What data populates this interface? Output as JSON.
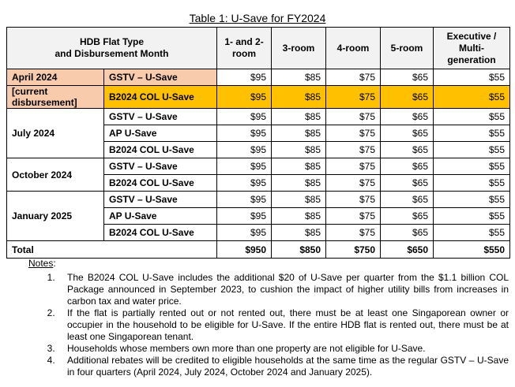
{
  "caption": "Table 1: U-Save for FY2024",
  "header": {
    "type_col_line1": "HDB Flat Type",
    "type_col_line2": "and Disbursement Month",
    "cols": [
      "1- and 2-room",
      "3-room",
      "4-room",
      "5-room",
      "Executive / Multi-generation"
    ]
  },
  "groups": [
    {
      "month_line1": "April 2024",
      "month_line2": "[current disbursement]",
      "rows": [
        {
          "type": "GSTV – U-Save",
          "values": [
            "$95",
            "$85",
            "$75",
            "$65",
            "$55"
          ]
        },
        {
          "type": "B2024 COL U-Save",
          "values": [
            "$95",
            "$85",
            "$75",
            "$65",
            "$55"
          ]
        }
      ]
    },
    {
      "month_line1": "July 2024",
      "rows": [
        {
          "type": "GSTV – U-Save",
          "values": [
            "$95",
            "$85",
            "$75",
            "$65",
            "$55"
          ]
        },
        {
          "type": "AP U-Save",
          "values": [
            "$95",
            "$85",
            "$75",
            "$65",
            "$55"
          ]
        },
        {
          "type": "B2024 COL U-Save",
          "values": [
            "$95",
            "$85",
            "$75",
            "$65",
            "$55"
          ]
        }
      ]
    },
    {
      "month_line1": "October 2024",
      "rows": [
        {
          "type": "GSTV – U-Save",
          "values": [
            "$95",
            "$85",
            "$75",
            "$65",
            "$55"
          ]
        },
        {
          "type": "B2024 COL U-Save",
          "values": [
            "$95",
            "$85",
            "$75",
            "$65",
            "$55"
          ]
        }
      ]
    },
    {
      "month_line1": "January 2025",
      "rows": [
        {
          "type": "GSTV – U-Save",
          "values": [
            "$95",
            "$85",
            "$75",
            "$65",
            "$55"
          ]
        },
        {
          "type": "AP U-Save",
          "values": [
            "$95",
            "$85",
            "$75",
            "$65",
            "$55"
          ]
        },
        {
          "type": "B2024 COL U-Save",
          "values": [
            "$95",
            "$85",
            "$75",
            "$65",
            "$55"
          ]
        }
      ]
    }
  ],
  "total": {
    "label": "Total",
    "values": [
      "$950",
      "$850",
      "$750",
      "$650",
      "$550"
    ]
  },
  "colors": {
    "april_row": "#f8cbad",
    "current_highlight": "#ffc000",
    "header_bg": "#f2f2f2"
  },
  "notes": {
    "title": "Notes",
    "items": [
      "The B2024 COL U-Save includes the additional $20 of U-Save per quarter from the $1.1 billion COL Package announced in September 2023, to cushion the impact of higher utility bills from increases in carbon tax and water price.",
      "If the flat is partially rented out or not rented out, there must be at least one Singaporean owner or occupier in the household to be eligible for U-Save. If the entire HDB flat is rented out, there must be at least one Singaporean tenant.",
      "Households whose members own more than one property are not eligible for U-Save.",
      "Additional rebates will be credited to eligible households at the same time as the regular GSTV – U-Save in four quarters (April 2024, July 2024, October 2024 and January 2025)."
    ]
  }
}
